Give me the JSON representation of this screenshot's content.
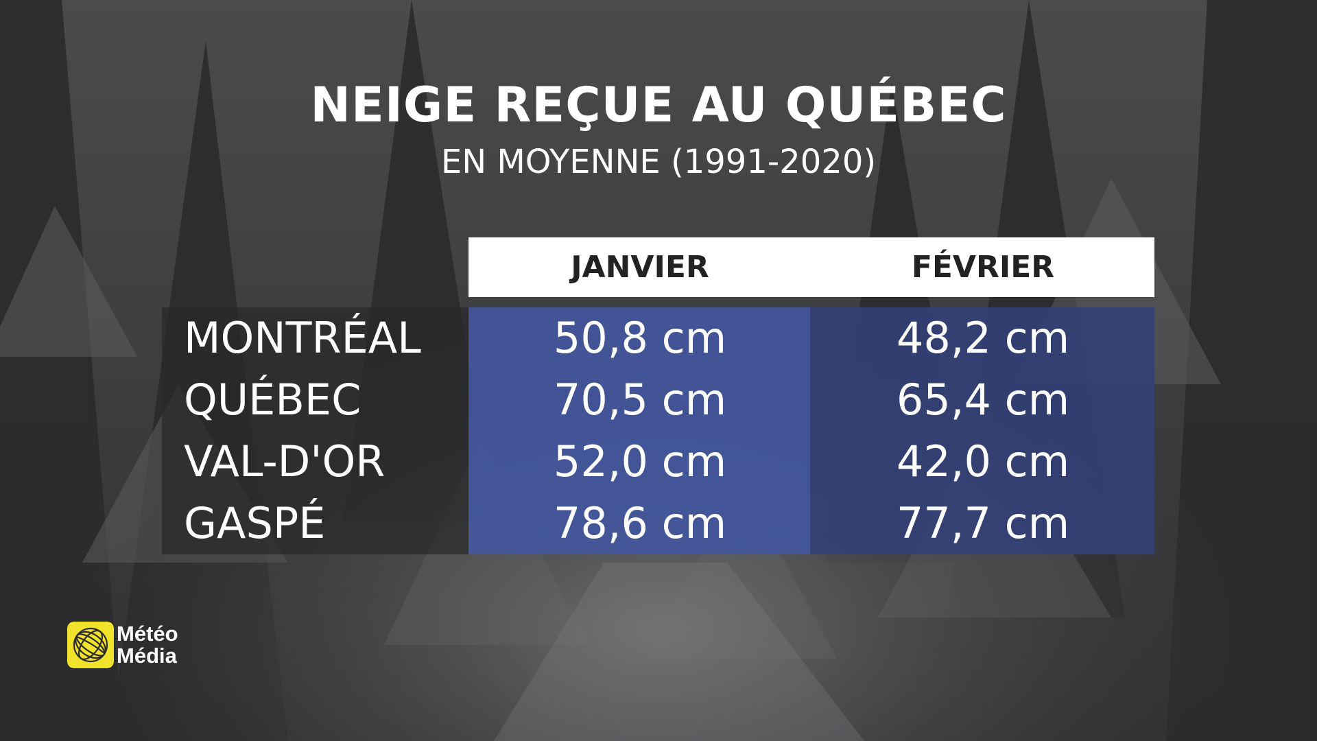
{
  "title": "NEIGE REÇUE AU QUÉBEC",
  "subtitle": "EN MOYENNE (1991-2020)",
  "logo": {
    "line1": "Météo",
    "line2": "Média",
    "icon": "globe-icon",
    "color": "#f1e22c"
  },
  "colors": {
    "janvier_column": "#4256a0",
    "fevrier_column": "#344076",
    "header_bg": "#ffffff"
  },
  "chart_data": {
    "type": "table",
    "title": "NEIGE REÇUE AU QUÉBEC",
    "subtitle": "EN MOYENNE (1991-2020)",
    "columns": [
      "JANVIER",
      "FÉVRIER"
    ],
    "rows": [
      {
        "city": "MONTRÉAL",
        "values": [
          "50,8 cm",
          "48,2 cm"
        ]
      },
      {
        "city": "QUÉBEC",
        "values": [
          "70,5 cm",
          "65,4 cm"
        ]
      },
      {
        "city": "VAL-D'OR",
        "values": [
          "52,0 cm",
          "42,0 cm"
        ]
      },
      {
        "city": "GASPÉ",
        "values": [
          "78,6 cm",
          "77,7 cm"
        ]
      }
    ]
  }
}
